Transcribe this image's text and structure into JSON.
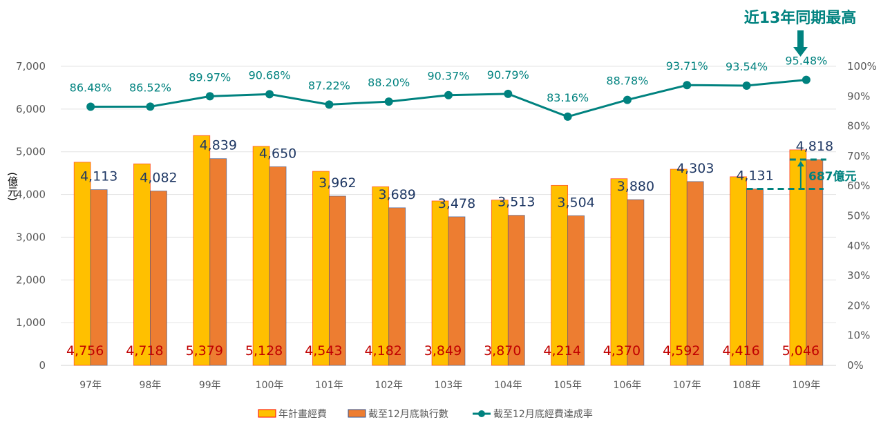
{
  "chart_data": {
    "type": "bar",
    "title": "",
    "ylabel": "(億元)",
    "y2label": "",
    "ylim": [
      0,
      7000
    ],
    "y2lim": [
      0,
      100
    ],
    "yticks": [
      "0",
      "1,000",
      "2,000",
      "3,000",
      "4,000",
      "5,000",
      "6,000",
      "7,000"
    ],
    "y2ticks": [
      "0%",
      "10%",
      "20%",
      "30%",
      "40%",
      "50%",
      "60%",
      "70%",
      "80%",
      "90%",
      "100%"
    ],
    "grid": true,
    "legend_position": "bottom",
    "categories": [
      "97年",
      "98年",
      "99年",
      "100年",
      "101年",
      "102年",
      "103年",
      "104年",
      "105年",
      "106年",
      "107年",
      "108年",
      "109年"
    ],
    "series": [
      {
        "name": "年計畫經費",
        "kind": "bar",
        "color": "#ffc000",
        "edge": "#ff0000",
        "values": [
          4756,
          4718,
          5379,
          5128,
          4543,
          4182,
          3849,
          3870,
          4214,
          4370,
          4592,
          4416,
          5046
        ],
        "labels": [
          "4,756",
          "4,718",
          "5,379",
          "5,128",
          "4,543",
          "4,182",
          "3,849",
          "3,870",
          "4,214",
          "4,370",
          "4,592",
          "4,416",
          "5,046"
        ]
      },
      {
        "name": "截至12月底執行數",
        "kind": "bar",
        "color": "#ed7d31",
        "edge": "#2f5597",
        "values": [
          4113,
          4082,
          4839,
          4650,
          3962,
          3689,
          3478,
          3513,
          3504,
          3880,
          4303,
          4131,
          4818
        ],
        "labels": [
          "4,113",
          "4,082",
          "4,839",
          "4,650",
          "3,962",
          "3,689",
          "3,478",
          "3,513",
          "3,504",
          "3,880",
          "4,303",
          "4,131",
          "4,818"
        ]
      },
      {
        "name": "截至12月底經費達成率",
        "kind": "line",
        "axis": "right",
        "color": "#00827f",
        "values": [
          86.48,
          86.52,
          89.97,
          90.68,
          87.22,
          88.2,
          90.37,
          90.79,
          83.16,
          88.78,
          93.71,
          93.54,
          95.48
        ],
        "labels": [
          "86.48%",
          "86.52%",
          "89.97%",
          "90.68%",
          "87.22%",
          "88.20%",
          "90.37%",
          "90.79%",
          "83.16%",
          "88.78%",
          "93.71%",
          "93.54%",
          "95.48%"
        ]
      }
    ],
    "annotations": {
      "highlight": "近13年同期最高",
      "difference": "687億元"
    }
  }
}
